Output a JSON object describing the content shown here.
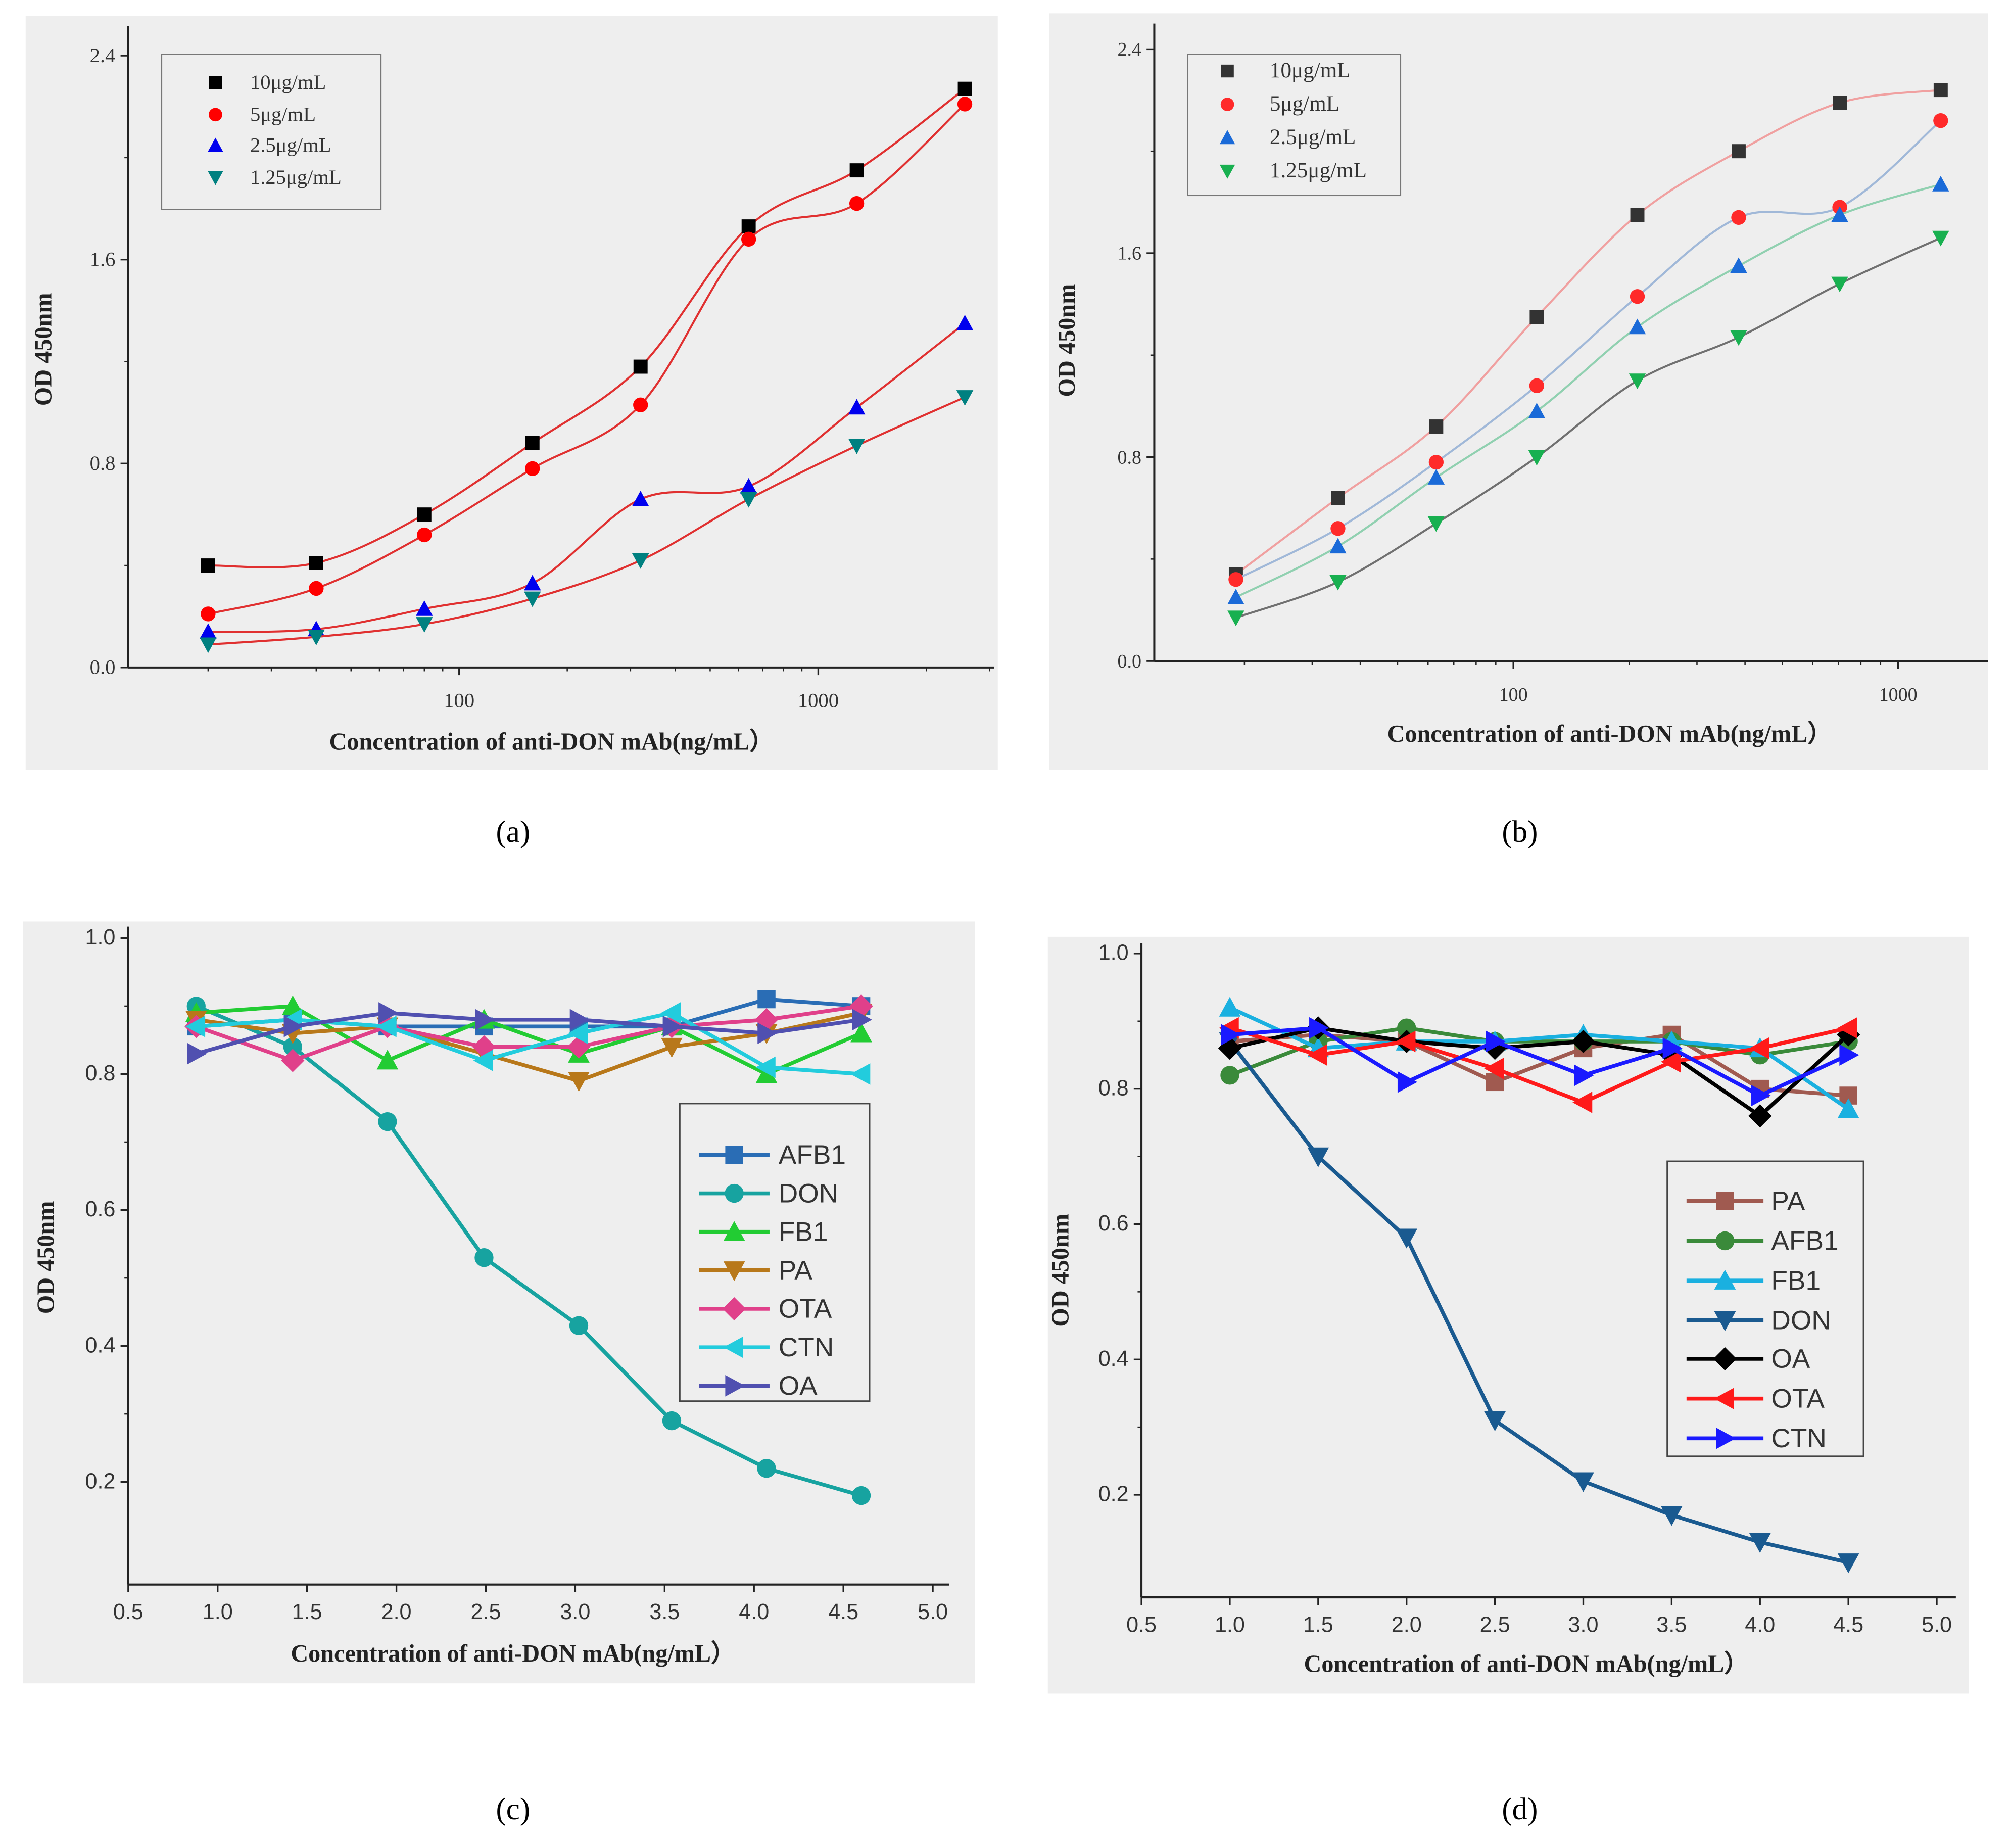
{
  "chart_data": [
    {
      "panel": "a",
      "caption": "(a)",
      "type": "scatter",
      "xscale": "log",
      "xlabel": "Concentration of anti-DON mAb(ng/mL）",
      "ylabel": "OD 450nm",
      "xlim": [
        12,
        3100
      ],
      "ylim": [
        0,
        2.5
      ],
      "xticks": [
        "100",
        "1000"
      ],
      "yticks": [
        "0.0",
        "0.8",
        "1.6",
        "2.4"
      ],
      "legend_position": "top-left",
      "fit_lines": true,
      "x": [
        20,
        40,
        80,
        160,
        320,
        640,
        1280,
        2560
      ],
      "series": [
        {
          "name": "10μg/mL",
          "marker": "square",
          "color": "#000000",
          "line_color": "#e03030",
          "values": [
            0.4,
            0.41,
            0.6,
            0.88,
            1.18,
            1.73,
            1.95,
            2.27
          ]
        },
        {
          "name": "5μg/mL",
          "marker": "circle",
          "color": "#ff0000",
          "line_color": "#e03030",
          "values": [
            0.21,
            0.31,
            0.52,
            0.78,
            1.03,
            1.68,
            1.82,
            2.21
          ]
        },
        {
          "name": "2.5μg/mL",
          "marker": "triangle-up",
          "color": "#0000ee",
          "line_color": "#e03030",
          "values": [
            0.14,
            0.15,
            0.23,
            0.33,
            0.66,
            0.71,
            1.02,
            1.35
          ]
        },
        {
          "name": "1.25μg/mL",
          "marker": "triangle-down",
          "color": "#008080",
          "line_color": "#e03030",
          "values": [
            0.09,
            0.12,
            0.17,
            0.27,
            0.42,
            0.66,
            0.87,
            1.06
          ]
        }
      ]
    },
    {
      "panel": "b",
      "caption": "(b)",
      "type": "scatter",
      "xscale": "log",
      "xlabel": "Concentration of anti-DON mAb(ng/mL）",
      "ylabel": "OD 450nm",
      "xlim": [
        10,
        1500
      ],
      "ylim": [
        0,
        2.5
      ],
      "xticks": [
        "100",
        "1000"
      ],
      "yticks": [
        "0.0",
        "0.8",
        "1.6",
        "2.4"
      ],
      "legend_position": "top-left",
      "fit_lines": true,
      "x": [
        19,
        35,
        63,
        115,
        210,
        385,
        705,
        1290
      ],
      "series": [
        {
          "name": "10μg/mL",
          "marker": "square",
          "color": "#333333",
          "line_color": "#f0a0a0",
          "values": [
            0.34,
            0.64,
            0.92,
            1.35,
            1.75,
            2.0,
            2.19,
            2.24
          ]
        },
        {
          "name": "5μg/mL",
          "marker": "circle",
          "color": "#ff2a2a",
          "line_color": "#a0b8d8",
          "values": [
            0.32,
            0.52,
            0.78,
            1.08,
            1.43,
            1.74,
            1.78,
            2.12
          ]
        },
        {
          "name": "2.5μg/mL",
          "marker": "triangle-up",
          "color": "#1a6ad8",
          "line_color": "#90d0b0",
          "values": [
            0.25,
            0.45,
            0.72,
            0.98,
            1.31,
            1.55,
            1.75,
            1.87
          ]
        },
        {
          "name": "1.25μg/mL",
          "marker": "triangle-down",
          "color": "#18b050",
          "line_color": "#707070",
          "values": [
            0.17,
            0.31,
            0.54,
            0.8,
            1.1,
            1.27,
            1.48,
            1.66
          ]
        }
      ]
    },
    {
      "panel": "c",
      "caption": "(c)",
      "type": "line",
      "xlabel": "Concentration of anti-DON mAb(ng/mL）",
      "ylabel": "OD 450nm",
      "xlim": [
        0.5,
        5.0
      ],
      "ylim": [
        0.05,
        1.0
      ],
      "xticks": [
        "0.5",
        "1.0",
        "1.5",
        "2.0",
        "2.5",
        "3.0",
        "3.5",
        "4.0",
        "4.5",
        "5.0"
      ],
      "yticks": [
        "0.2",
        "0.4",
        "0.6",
        "0.8",
        "1.0"
      ],
      "legend_position": "center-right",
      "x": [
        0.88,
        1.42,
        1.95,
        2.49,
        3.02,
        3.54,
        4.07,
        4.6
      ],
      "series": [
        {
          "name": "AFB1",
          "marker": "square",
          "color": "#2a6db5",
          "values": [
            0.87,
            0.88,
            0.87,
            0.87,
            0.87,
            0.87,
            0.91,
            0.9
          ]
        },
        {
          "name": "DON",
          "marker": "circle",
          "color": "#17a3a0",
          "values": [
            0.9,
            0.84,
            0.73,
            0.53,
            0.43,
            0.29,
            0.22,
            0.18
          ]
        },
        {
          "name": "FB1",
          "marker": "triangle-up",
          "color": "#22cc33",
          "values": [
            0.89,
            0.9,
            0.82,
            0.88,
            0.83,
            0.87,
            0.8,
            0.86
          ]
        },
        {
          "name": "PA",
          "marker": "triangle-down",
          "color": "#b8781a",
          "values": [
            0.88,
            0.86,
            0.87,
            0.83,
            0.79,
            0.84,
            0.86,
            0.89
          ]
        },
        {
          "name": "OTA",
          "marker": "diamond",
          "color": "#e0408a",
          "values": [
            0.87,
            0.82,
            0.87,
            0.84,
            0.84,
            0.87,
            0.88,
            0.9
          ]
        },
        {
          "name": "CTN",
          "marker": "triangle-left",
          "color": "#22ccdd",
          "values": [
            0.87,
            0.88,
            0.87,
            0.82,
            0.86,
            0.89,
            0.81,
            0.8
          ]
        },
        {
          "name": "OA",
          "marker": "triangle-right",
          "color": "#5050b0",
          "values": [
            0.83,
            0.87,
            0.89,
            0.88,
            0.88,
            0.87,
            0.86,
            0.88
          ]
        }
      ]
    },
    {
      "panel": "d",
      "caption": "(d)",
      "type": "line",
      "xlabel": "Concentration of anti-DON mAb(ng/mL）",
      "ylabel": "OD 450nm",
      "xlim": [
        0.5,
        5.0
      ],
      "ylim": [
        0.05,
        1.0
      ],
      "xticks": [
        "0.5",
        "1.0",
        "1.5",
        "2.0",
        "2.5",
        "3.0",
        "3.5",
        "4.0",
        "4.5",
        "5.0"
      ],
      "yticks": [
        "0.2",
        "0.4",
        "0.6",
        "0.8",
        "1.0"
      ],
      "legend_position": "center-right",
      "x": [
        1.0,
        1.5,
        2.0,
        2.5,
        3.0,
        3.5,
        4.0,
        4.5
      ],
      "series": [
        {
          "name": "PA",
          "marker": "square",
          "color": "#a05a50",
          "values": [
            0.87,
            0.88,
            0.87,
            0.81,
            0.86,
            0.88,
            0.8,
            0.79
          ]
        },
        {
          "name": "AFB1",
          "marker": "circle",
          "color": "#3a8a3a",
          "values": [
            0.82,
            0.87,
            0.89,
            0.87,
            0.87,
            0.87,
            0.85,
            0.87
          ]
        },
        {
          "name": "FB1",
          "marker": "triangle-up",
          "color": "#1ab0e0",
          "values": [
            0.92,
            0.86,
            0.87,
            0.87,
            0.88,
            0.87,
            0.86,
            0.77
          ]
        },
        {
          "name": "DON",
          "marker": "triangle-down",
          "color": "#1a5a90",
          "values": [
            0.87,
            0.7,
            0.58,
            0.31,
            0.22,
            0.17,
            0.13,
            0.1
          ]
        },
        {
          "name": "OA",
          "marker": "diamond",
          "color": "#000000",
          "values": [
            0.86,
            0.89,
            0.87,
            0.86,
            0.87,
            0.85,
            0.76,
            0.88
          ]
        },
        {
          "name": "OTA",
          "marker": "triangle-left",
          "color": "#ff1a1a",
          "values": [
            0.89,
            0.85,
            0.87,
            0.83,
            0.78,
            0.84,
            0.86,
            0.89
          ]
        },
        {
          "name": "CTN",
          "marker": "triangle-right",
          "color": "#1a1aff",
          "values": [
            0.88,
            0.89,
            0.81,
            0.87,
            0.82,
            0.86,
            0.79,
            0.85
          ]
        }
      ]
    }
  ]
}
